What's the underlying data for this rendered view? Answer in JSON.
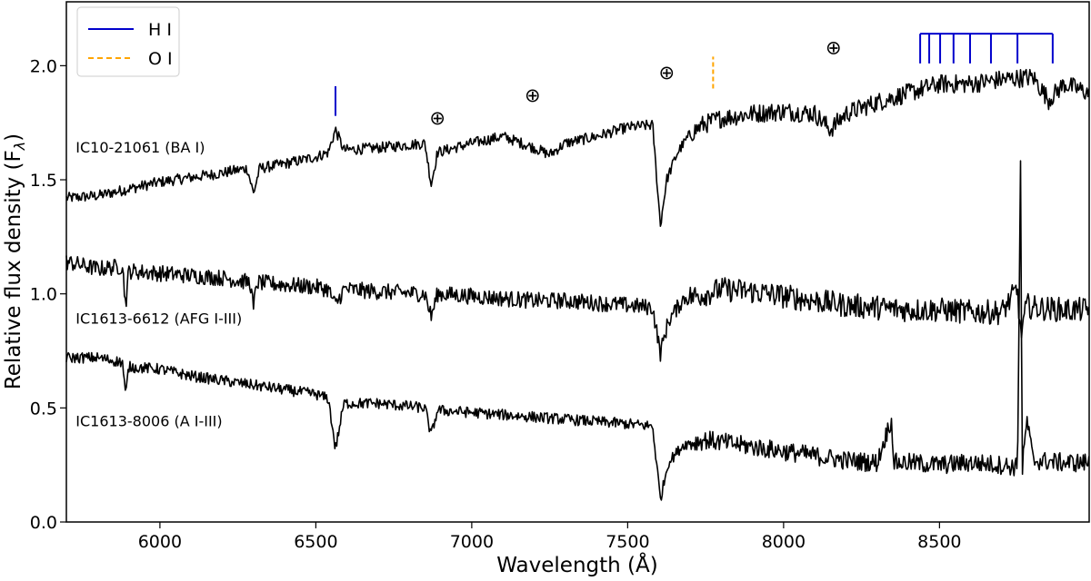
{
  "chart_data": {
    "type": "line",
    "xlabel": "Wavelength (Å)",
    "ylabel": "Relative flux density (F",
    "ylabel_sub": "λ",
    "ylabel_close": ")",
    "xlim": [
      5700,
      8980
    ],
    "ylim": [
      0.0,
      2.28
    ],
    "xticks": [
      6000,
      6500,
      7000,
      7500,
      8000,
      8500
    ],
    "xtick_labels": [
      "6000",
      "6500",
      "7000",
      "7500",
      "8000",
      "8500"
    ],
    "yticks": [
      0.0,
      0.5,
      1.0,
      1.5,
      2.0
    ],
    "ytick_labels": [
      "0.0",
      "0.5",
      "1.0",
      "1.5",
      "2.0"
    ],
    "grid": false,
    "legend": {
      "position": "top-left",
      "entries": [
        {
          "label": "H I",
          "color": "#0000cc",
          "style": "solid"
        },
        {
          "label": "O I",
          "color": "#ffa500",
          "style": "dashed"
        }
      ]
    },
    "series": [
      {
        "name": "IC10-21061 (BA I)",
        "color": "#000000",
        "label_at": [
          5730,
          1.62
        ],
        "x": [
          5700,
          5800,
          5900,
          6000,
          6100,
          6200,
          6280,
          6300,
          6320,
          6400,
          6500,
          6540,
          6563,
          6590,
          6700,
          6850,
          6870,
          6890,
          7000,
          7100,
          7200,
          7250,
          7300,
          7400,
          7500,
          7580,
          7605,
          7625,
          7660,
          7700,
          7740,
          7800,
          7900,
          8000,
          8100,
          8150,
          8200,
          8300,
          8400,
          8500,
          8600,
          8700,
          8800,
          8850,
          8900,
          8980
        ],
        "y": [
          1.42,
          1.43,
          1.46,
          1.49,
          1.51,
          1.53,
          1.55,
          1.44,
          1.55,
          1.57,
          1.6,
          1.62,
          1.72,
          1.63,
          1.64,
          1.66,
          1.48,
          1.62,
          1.66,
          1.69,
          1.64,
          1.61,
          1.66,
          1.69,
          1.73,
          1.74,
          1.3,
          1.5,
          1.62,
          1.7,
          1.74,
          1.77,
          1.79,
          1.8,
          1.79,
          1.72,
          1.79,
          1.84,
          1.88,
          1.92,
          1.92,
          1.94,
          1.95,
          1.85,
          1.92,
          1.88
        ]
      },
      {
        "name": "IC1613-6612 (AFG I-III)",
        "color": "#000000",
        "label_at": [
          5730,
          0.87
        ],
        "x": [
          5700,
          5800,
          5880,
          5890,
          5900,
          6000,
          6100,
          6200,
          6290,
          6300,
          6310,
          6400,
          6500,
          6540,
          6563,
          6590,
          6700,
          6850,
          6870,
          6890,
          7000,
          7100,
          7200,
          7300,
          7400,
          7500,
          7580,
          7605,
          7630,
          7680,
          7750,
          7800,
          7900,
          8000,
          8100,
          8200,
          8300,
          8400,
          8500,
          8600,
          8700,
          8750,
          8760,
          8780,
          8800,
          8900,
          8980
        ],
        "y": [
          1.14,
          1.11,
          1.12,
          0.95,
          1.1,
          1.09,
          1.08,
          1.07,
          1.05,
          0.93,
          1.05,
          1.04,
          1.03,
          1.02,
          0.95,
          1.02,
          1.01,
          1.0,
          0.9,
          1.0,
          0.99,
          0.98,
          0.97,
          0.97,
          0.96,
          0.95,
          0.94,
          0.74,
          0.88,
          0.98,
          1.0,
          1.02,
          1.01,
          0.99,
          0.97,
          0.95,
          0.94,
          0.93,
          0.93,
          0.92,
          0.92,
          1.02,
          0.82,
          0.95,
          0.94,
          0.93,
          0.93
        ]
      },
      {
        "name": "IC1613-8006 (A I-III)",
        "color": "#000000",
        "label_at": [
          5730,
          0.42
        ],
        "x": [
          5700,
          5800,
          5880,
          5890,
          5900,
          6000,
          6100,
          6200,
          6300,
          6400,
          6500,
          6540,
          6563,
          6590,
          6700,
          6850,
          6870,
          6890,
          7000,
          7100,
          7200,
          7300,
          7400,
          7500,
          7580,
          7605,
          7630,
          7680,
          7750,
          7800,
          7900,
          8000,
          8100,
          8200,
          8300,
          8345,
          8355,
          8400,
          8500,
          8600,
          8700,
          8750,
          8760,
          8765,
          8780,
          8800,
          8900,
          8980
        ],
        "y": [
          0.72,
          0.72,
          0.7,
          0.55,
          0.68,
          0.67,
          0.64,
          0.62,
          0.6,
          0.58,
          0.56,
          0.54,
          0.32,
          0.52,
          0.52,
          0.5,
          0.38,
          0.49,
          0.48,
          0.47,
          0.46,
          0.45,
          0.44,
          0.43,
          0.42,
          0.1,
          0.26,
          0.34,
          0.36,
          0.35,
          0.33,
          0.31,
          0.29,
          0.27,
          0.26,
          0.45,
          0.26,
          0.26,
          0.25,
          0.26,
          0.25,
          0.24,
          1.58,
          0.22,
          0.45,
          0.27,
          0.26,
          0.26
        ]
      }
    ],
    "annotations": {
      "telluric_symbol": "⊕",
      "telluric": [
        [
          6890,
          1.77
        ],
        [
          7195,
          1.87
        ],
        [
          7625,
          1.97
        ],
        [
          8160,
          2.08
        ]
      ],
      "h_alpha_marker": {
        "x": 6563,
        "y0": 1.78,
        "y1": 1.91
      },
      "o_i_marker": {
        "x": 7774,
        "y0": 1.9,
        "y1": 2.04
      },
      "paschen_lines": [
        8438,
        8467,
        8502,
        8545,
        8598,
        8665,
        8750,
        8863
      ],
      "paschen_bar_y": 2.14,
      "paschen_tick_bottom": 2.01
    }
  }
}
